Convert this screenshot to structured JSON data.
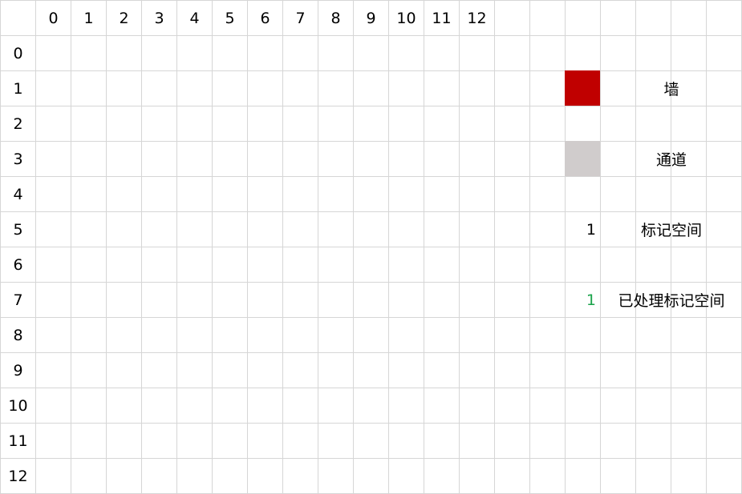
{
  "grid": {
    "column_headers": [
      "0",
      "1",
      "2",
      "3",
      "4",
      "5",
      "6",
      "7",
      "8",
      "9",
      "10",
      "11",
      "12"
    ],
    "row_headers": [
      "0",
      "1",
      "2",
      "3",
      "4",
      "5",
      "6",
      "7",
      "8",
      "9",
      "10",
      "11",
      "12"
    ]
  },
  "legend": {
    "wall": {
      "label": "墙",
      "color": "#c00000"
    },
    "passage": {
      "label": "通道",
      "color": "#d0cccc"
    },
    "marked": {
      "value": "1",
      "label": "标记空间",
      "color": "#000000"
    },
    "processed": {
      "value": "1",
      "label": "已处理标记空间",
      "color": "#1aa34a"
    }
  }
}
